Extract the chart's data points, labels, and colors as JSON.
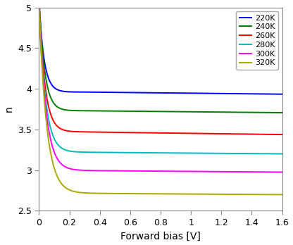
{
  "title": "",
  "xlabel": "Forward bias [V]",
  "ylabel": "n",
  "xlim": [
    0,
    1.6
  ],
  "ylim": [
    2.5,
    5.0
  ],
  "xticks": [
    0,
    0.2,
    0.4,
    0.6,
    0.8,
    1.0,
    1.2,
    1.4,
    1.6
  ],
  "yticks": [
    2.5,
    3.0,
    3.5,
    4.0,
    4.5,
    5.0
  ],
  "ytick_labels": [
    "2.5",
    "3",
    "3.5",
    "4",
    "4.5",
    "5"
  ],
  "xtick_labels": [
    "0",
    "0.2",
    "0.4",
    "0.6",
    "0.8",
    "1",
    "1.2",
    "1.4",
    "1.6"
  ],
  "curves": [
    {
      "label": "220K",
      "color": "#0000FF",
      "plateau": 3.96,
      "rise_factor": 30.0,
      "amplitude": 1.1,
      "v_shift": 0.0,
      "final_n": 3.93,
      "final_slope": -0.02
    },
    {
      "label": "240K",
      "color": "#008000",
      "plateau": 3.73,
      "rise_factor": 28.0,
      "amplitude": 1.4,
      "v_shift": 0.0,
      "final_n": 3.7,
      "final_slope": -0.018
    },
    {
      "label": "260K",
      "color": "#FF0000",
      "plateau": 3.47,
      "rise_factor": 26.0,
      "amplitude": 1.6,
      "v_shift": 0.0,
      "final_n": 3.43,
      "final_slope": -0.025
    },
    {
      "label": "280K",
      "color": "#00BBBB",
      "plateau": 3.22,
      "rise_factor": 24.0,
      "amplitude": 1.85,
      "v_shift": 0.0,
      "final_n": 3.2,
      "final_slope": -0.015
    },
    {
      "label": "300K",
      "color": "#FF00FF",
      "plateau": 2.995,
      "rise_factor": 22.0,
      "amplitude": 2.05,
      "v_shift": 0.0,
      "final_n": 2.97,
      "final_slope": -0.015
    },
    {
      "label": "320K",
      "color": "#AAAA00",
      "plateau": 2.715,
      "rise_factor": 20.0,
      "amplitude": 2.3,
      "v_shift": 0.0,
      "final_n": 2.7,
      "final_slope": -0.012
    }
  ],
  "background_color": "#FFFFFF",
  "legend_fontsize": 8,
  "axis_fontsize": 10,
  "linewidth": 1.4,
  "figsize": [
    4.16,
    3.48
  ],
  "dpi": 100
}
